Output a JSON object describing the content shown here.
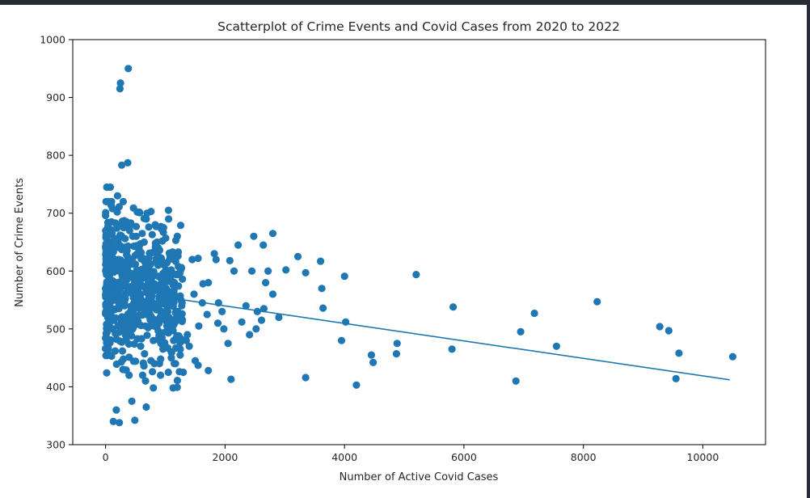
{
  "chart_data": {
    "type": "scatter",
    "title": "Scatterplot of Crime Events and Covid Cases from 2020 to 2022",
    "xlabel": "Number of Active Covid Cases",
    "ylabel": "Number of Crime Events",
    "xlim": [
      -550,
      11050
    ],
    "ylim": [
      300,
      1000
    ],
    "xticks": [
      0,
      2000,
      4000,
      6000,
      8000,
      10000
    ],
    "yticks": [
      300,
      400,
      500,
      600,
      700,
      800,
      900,
      1000
    ],
    "grid": false,
    "marker_color": "#1f77b4",
    "line_color": "#1f77b4",
    "trend_line": {
      "x": [
        0,
        10450
      ],
      "y": [
        570,
        412
      ]
    },
    "points": [
      [
        380,
        950
      ],
      [
        250,
        925
      ],
      [
        240,
        915
      ],
      [
        370,
        787
      ],
      [
        270,
        783
      ],
      [
        20,
        745
      ],
      [
        80,
        745
      ],
      [
        200,
        730
      ],
      [
        530,
        702
      ],
      [
        680,
        690
      ],
      [
        830,
        680
      ],
      [
        970,
        675
      ],
      [
        1200,
        660
      ],
      [
        860,
        650
      ],
      [
        950,
        652
      ],
      [
        1080,
        625
      ],
      [
        1450,
        620
      ],
      [
        1270,
        605
      ],
      [
        1550,
        622
      ],
      [
        1820,
        630
      ],
      [
        1850,
        620
      ],
      [
        1720,
        580
      ],
      [
        1630,
        578
      ],
      [
        1480,
        560
      ],
      [
        1280,
        545
      ],
      [
        1890,
        545
      ],
      [
        2080,
        618
      ],
      [
        2220,
        645
      ],
      [
        2150,
        600
      ],
      [
        2480,
        660
      ],
      [
        2640,
        645
      ],
      [
        2800,
        665
      ],
      [
        2450,
        600
      ],
      [
        2720,
        600
      ],
      [
        2680,
        580
      ],
      [
        2800,
        560
      ],
      [
        2350,
        540
      ],
      [
        2540,
        530
      ],
      [
        2650,
        535
      ],
      [
        2900,
        520
      ],
      [
        3020,
        602
      ],
      [
        3220,
        625
      ],
      [
        3350,
        597
      ],
      [
        3600,
        617
      ],
      [
        3620,
        570
      ],
      [
        3640,
        536
      ],
      [
        4000,
        591
      ],
      [
        4020,
        512
      ],
      [
        3950,
        480
      ],
      [
        5200,
        594
      ],
      [
        4450,
        455
      ],
      [
        4480,
        442
      ],
      [
        4870,
        457
      ],
      [
        4880,
        475
      ],
      [
        5820,
        538
      ],
      [
        5800,
        465
      ],
      [
        3350,
        416
      ],
      [
        4200,
        403
      ],
      [
        2100,
        413
      ],
      [
        1720,
        428
      ],
      [
        1050,
        425
      ],
      [
        1300,
        425
      ],
      [
        1550,
        437
      ],
      [
        1500,
        445
      ],
      [
        1980,
        500
      ],
      [
        2050,
        475
      ],
      [
        2280,
        512
      ],
      [
        2520,
        500
      ],
      [
        2410,
        490
      ],
      [
        2610,
        515
      ],
      [
        1880,
        510
      ],
      [
        1950,
        530
      ],
      [
        1350,
        480
      ],
      [
        1100,
        450
      ],
      [
        6950,
        495
      ],
      [
        7180,
        527
      ],
      [
        7550,
        470
      ],
      [
        8230,
        547
      ],
      [
        6870,
        410
      ],
      [
        9280,
        504
      ],
      [
        9430,
        497
      ],
      [
        9600,
        458
      ],
      [
        9550,
        414
      ],
      [
        10500,
        452
      ],
      [
        130,
        340
      ],
      [
        230,
        338
      ],
      [
        490,
        342
      ],
      [
        680,
        365
      ],
      [
        440,
        375
      ],
      [
        180,
        360
      ],
      [
        800,
        398
      ],
      [
        1130,
        398
      ],
      [
        620,
        420
      ],
      [
        920,
        420
      ],
      [
        760,
        445
      ],
      [
        1250,
        465
      ],
      [
        1170,
        440
      ],
      [
        1400,
        470
      ],
      [
        1370,
        490
      ],
      [
        1560,
        505
      ],
      [
        860,
        505
      ],
      [
        950,
        520
      ],
      [
        1020,
        560
      ],
      [
        1150,
        580
      ],
      [
        1000,
        600
      ],
      [
        890,
        575
      ],
      [
        1700,
        525
      ],
      [
        1620,
        545
      ]
    ]
  }
}
